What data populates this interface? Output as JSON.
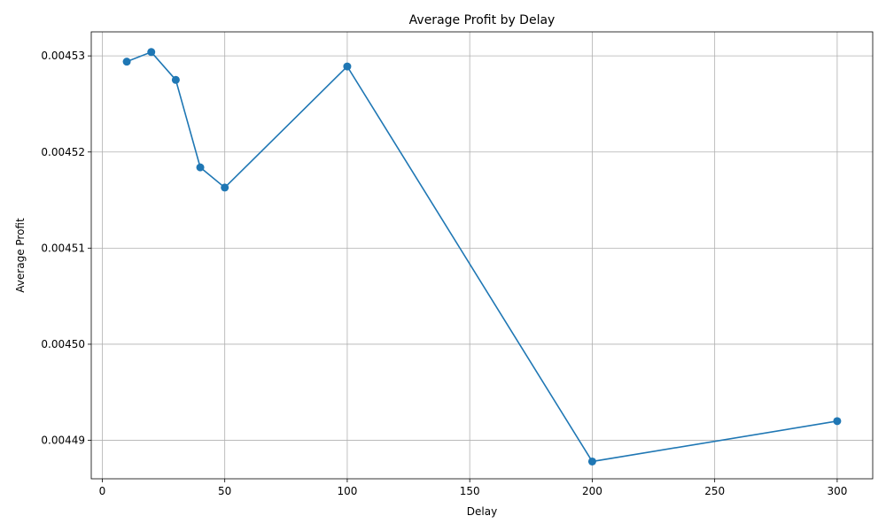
{
  "chart_data": {
    "type": "line",
    "title": "Average Profit by Delay",
    "xlabel": "Delay",
    "ylabel": "Average Profit",
    "x": [
      10,
      20,
      30,
      40,
      50,
      100,
      200,
      300
    ],
    "series": [
      {
        "values": [
          0.0045294,
          0.0045304,
          0.0045275,
          0.0045184,
          0.0045163,
          0.0045289,
          0.0044878,
          0.004492
        ]
      }
    ],
    "xlim": [
      -4.5,
      314.5
    ],
    "ylim": [
      0.004486,
      0.0045325
    ],
    "x_ticks": [
      0,
      50,
      100,
      150,
      200,
      250,
      300
    ],
    "x_tick_labels": [
      "0",
      "50",
      "100",
      "150",
      "200",
      "250",
      "300"
    ],
    "y_ticks": [
      0.00449,
      0.0045,
      0.00451,
      0.00452,
      0.00453
    ],
    "y_tick_labels": [
      "0.00449",
      "0.00450",
      "0.00451",
      "0.00452",
      "0.00453"
    ],
    "grid": true,
    "line_color": "#1f77b4",
    "marker": "circle"
  }
}
